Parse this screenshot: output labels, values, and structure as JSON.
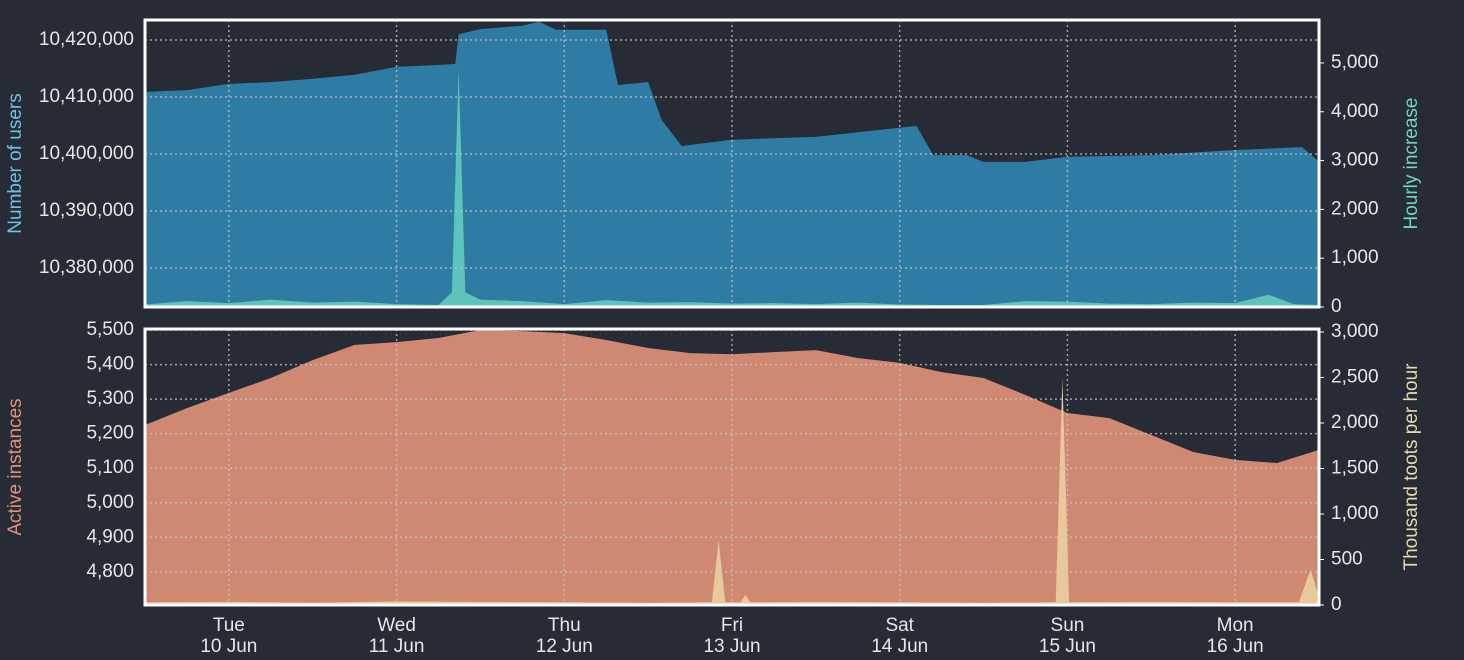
{
  "chart_data": [
    {
      "type": "area",
      "ylabel": "Number of users",
      "y2label": "Hourly increase",
      "xlim": [
        9.5,
        16.5
      ],
      "xticks": [
        10,
        11,
        12,
        13,
        14,
        15,
        16
      ],
      "ylim": [
        10373150,
        10423500
      ],
      "yticks": [
        {
          "value": 10380000,
          "label": "10,380,000"
        },
        {
          "value": 10390000,
          "label": "10,390,000"
        },
        {
          "value": 10400000,
          "label": "10,400,000"
        },
        {
          "value": 10410000,
          "label": "10,410,000"
        },
        {
          "value": 10420000,
          "label": "10,420,000"
        }
      ],
      "y2lim": [
        0,
        5880
      ],
      "y2ticks": [
        0,
        {
          "value": 1000,
          "label": "1,000"
        },
        {
          "value": 2000,
          "label": "2,000"
        },
        {
          "value": 3000,
          "label": "3,000"
        },
        {
          "value": 4000,
          "label": "4,000"
        },
        {
          "value": 5000,
          "label": "5,000"
        }
      ],
      "grid": true,
      "series": [
        {
          "name": "Number of users",
          "color": "#2e7ca3",
          "axis": "y",
          "x": [
            9.5,
            9.75,
            10.0,
            10.25,
            10.5,
            10.75,
            11.0,
            11.25,
            11.35,
            11.37,
            11.5,
            11.75,
            11.85,
            11.95,
            12.25,
            12.32,
            12.5,
            12.58,
            12.7,
            13.0,
            13.5,
            14.0,
            14.1,
            14.2,
            14.4,
            14.5,
            14.75,
            15.0,
            15.5,
            16.0,
            16.4,
            16.5
          ],
          "values": [
            10410900,
            10411200,
            10412300,
            10412600,
            10413200,
            10413900,
            10415300,
            10415600,
            10415800,
            10421000,
            10421900,
            10422500,
            10423200,
            10421800,
            10421800,
            10412100,
            10412600,
            10406000,
            10401400,
            10402500,
            10403000,
            10404600,
            10404900,
            10399800,
            10399800,
            10398600,
            10398600,
            10399500,
            10399800,
            10400700,
            10401200,
            10398600
          ]
        },
        {
          "name": "Hourly increase",
          "color": "#5cc4bb",
          "axis": "y2",
          "x": [
            9.5,
            9.75,
            10.0,
            10.25,
            10.5,
            10.75,
            11.0,
            11.25,
            11.33,
            11.37,
            11.41,
            11.5,
            11.75,
            12.0,
            12.25,
            12.5,
            12.75,
            13.0,
            13.25,
            13.5,
            13.75,
            14.0,
            14.25,
            14.5,
            14.75,
            15.0,
            15.25,
            15.5,
            15.75,
            16.0,
            16.2,
            16.35,
            16.5
          ],
          "values": [
            50,
            120,
            80,
            150,
            90,
            110,
            60,
            40,
            300,
            4850,
            300,
            150,
            120,
            60,
            140,
            90,
            100,
            70,
            80,
            60,
            90,
            50,
            40,
            40,
            120,
            110,
            70,
            60,
            90,
            80,
            250,
            60,
            40
          ]
        }
      ]
    },
    {
      "type": "area",
      "ylabel": "Active instances",
      "y2label": "Thousand toots per hour",
      "xlim": [
        9.5,
        16.5
      ],
      "xticks": [
        {
          "value": 10,
          "label": [
            "Tue",
            "10 Jun"
          ]
        },
        {
          "value": 11,
          "label": [
            "Wed",
            "11 Jun"
          ]
        },
        {
          "value": 12,
          "label": [
            "Thu",
            "12 Jun"
          ]
        },
        {
          "value": 13,
          "label": [
            "Fri",
            "13 Jun"
          ]
        },
        {
          "value": 14,
          "label": [
            "Sat",
            "14 Jun"
          ]
        },
        {
          "value": 15,
          "label": [
            "Sun",
            "15 Jun"
          ]
        },
        {
          "value": 16,
          "label": [
            "Mon",
            "16 Jun"
          ]
        }
      ],
      "ylim": [
        4704,
        5503
      ],
      "yticks": [
        {
          "value": 4800,
          "label": "4,800"
        },
        {
          "value": 4900,
          "label": "4,900"
        },
        {
          "value": 5000,
          "label": "5,000"
        },
        {
          "value": 5100,
          "label": "5,100"
        },
        {
          "value": 5200,
          "label": "5,200"
        },
        {
          "value": 5300,
          "label": "5,300"
        },
        {
          "value": 5400,
          "label": "5,400"
        },
        {
          "value": 5500,
          "label": "5,500"
        }
      ],
      "y2lim": [
        0,
        3033
      ],
      "y2ticks": [
        0,
        500,
        {
          "value": 1000,
          "label": "1,000"
        },
        {
          "value": 1500,
          "label": "1,500"
        },
        {
          "value": 2000,
          "label": "2,000"
        },
        {
          "value": 2500,
          "label": "2,500"
        },
        {
          "value": 3000,
          "label": "3,000"
        }
      ],
      "grid": true,
      "series": [
        {
          "name": "Active instances",
          "color": "#cf8871",
          "axis": "y",
          "x": [
            9.5,
            9.75,
            10.0,
            10.25,
            10.5,
            10.75,
            11.0,
            11.25,
            11.5,
            11.75,
            12.0,
            12.25,
            12.5,
            12.75,
            13.0,
            13.25,
            13.5,
            13.75,
            14.0,
            14.25,
            14.5,
            14.75,
            15.0,
            15.25,
            15.5,
            15.75,
            16.0,
            16.25,
            16.5
          ],
          "values": [
            5225,
            5274,
            5318,
            5361,
            5413,
            5457,
            5465,
            5477,
            5500,
            5497,
            5491,
            5471,
            5448,
            5433,
            5430,
            5436,
            5442,
            5419,
            5405,
            5378,
            5361,
            5312,
            5260,
            5245,
            5196,
            5147,
            5124,
            5115,
            5153
          ]
        },
        {
          "name": "Thousand toots per hour",
          "color": "#e8c99c",
          "axis": "y2",
          "x": [
            9.5,
            10.0,
            10.5,
            11.0,
            11.5,
            12.0,
            12.5,
            12.88,
            12.92,
            12.96,
            13.05,
            13.08,
            13.11,
            13.5,
            14.0,
            14.5,
            14.93,
            14.97,
            15.01,
            15.5,
            16.0,
            16.38,
            16.45,
            16.5
          ],
          "values": [
            30,
            35,
            25,
            40,
            35,
            30,
            25,
            30,
            710,
            30,
            30,
            110,
            30,
            35,
            30,
            25,
            30,
            2490,
            30,
            35,
            30,
            30,
            390,
            80
          ]
        }
      ]
    }
  ]
}
